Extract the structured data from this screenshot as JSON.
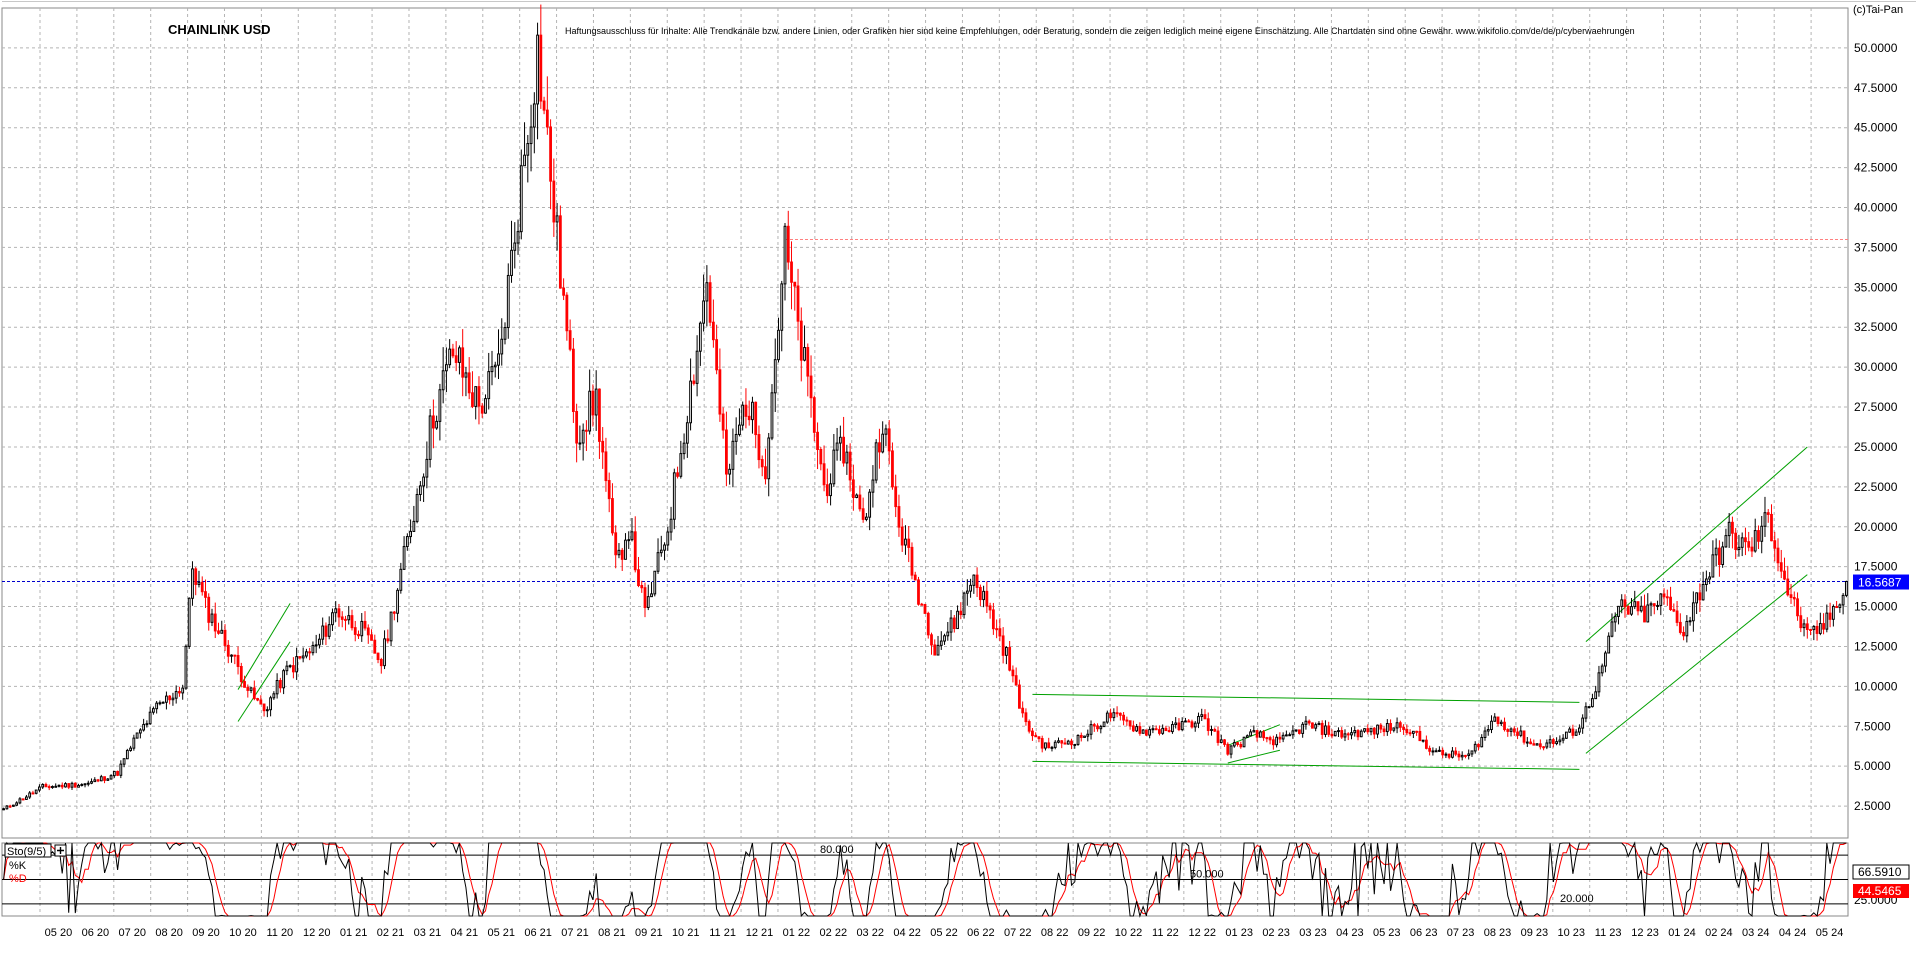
{
  "header": {
    "title": "CHAINLINK USD",
    "disclaimer": "Haftungsausschluss für Inhalte: Alle Trendkanäle bzw. andere Linien, oder Grafiken hier sind keine Empfehlungen, oder Beratung, sondern die zeigen lediglich meine eigene Einschätzung. Alle Chartdaten sind ohne Gewähr.  www.wikifolio.com/de/de/p/cyberwaehrungen",
    "copyright": "(c)Tai-Pan"
  },
  "colors": {
    "up": "#000000",
    "down": "#ff0000",
    "grid": "#b4b4b4",
    "current_line": "#0000cc",
    "current_box": "#0000ff",
    "trend": "#00a000",
    "resistance": "#ff8080",
    "k_line": "#000000",
    "d_line": "#ff0000",
    "d_box": "#ff0000"
  },
  "chart_data": [
    {
      "type": "candlestick",
      "title": "CHAINLINK USD",
      "ylim": [
        0.5,
        52.5
      ],
      "yticks": [
        "2.5000",
        "5.0000",
        "7.5000",
        "10.0000",
        "12.5000",
        "15.0000",
        "17.5000",
        "20.0000",
        "22.5000",
        "25.0000",
        "27.5000",
        "30.0000",
        "32.5000",
        "35.0000",
        "37.5000",
        "40.0000",
        "42.5000",
        "45.0000",
        "47.5000",
        "50.0000"
      ],
      "xticks": [
        "05 20",
        "06 20",
        "07 20",
        "08 20",
        "09 20",
        "10 20",
        "11 20",
        "12 20",
        "01 21",
        "02 21",
        "03 21",
        "04 21",
        "05 21",
        "06 21",
        "07 21",
        "08 21",
        "09 21",
        "10 21",
        "11 21",
        "12 21",
        "01 22",
        "02 22",
        "03 22",
        "04 22",
        "05 22",
        "06 22",
        "07 22",
        "08 22",
        "09 22",
        "10 22",
        "11 22",
        "12 22",
        "01 23",
        "02 23",
        "03 23",
        "04 23",
        "05 23",
        "06 23",
        "07 23",
        "08 23",
        "09 23",
        "10 23",
        "11 23",
        "12 23",
        "01 24",
        "02 24",
        "03 24",
        "04 24",
        "05 24"
      ],
      "current_value": "16.5687",
      "current_level": 16.5687,
      "resistance_level": 38.0,
      "grid": true,
      "anchors": [
        [
          0,
          2.3
        ],
        [
          12,
          3.7
        ],
        [
          26,
          3.9
        ],
        [
          35,
          4.6
        ],
        [
          40,
          6.6
        ],
        [
          47,
          8.7
        ],
        [
          55,
          10.0
        ],
        [
          58,
          17.5
        ],
        [
          62,
          15.0
        ],
        [
          70,
          12.0
        ],
        [
          76,
          9.5
        ],
        [
          80,
          8.5
        ],
        [
          87,
          11.0
        ],
        [
          96,
          12.5
        ],
        [
          102,
          14.8
        ],
        [
          110,
          13.5
        ],
        [
          116,
          11.5
        ],
        [
          124,
          19.0
        ],
        [
          132,
          27.0
        ],
        [
          138,
          31.0
        ],
        [
          146,
          27.5
        ],
        [
          152,
          30.0
        ],
        [
          158,
          40.0
        ],
        [
          164,
          50.0
        ],
        [
          170,
          38.0
        ],
        [
          176,
          26.0
        ],
        [
          182,
          28.0
        ],
        [
          188,
          17.5
        ],
        [
          192,
          20.0
        ],
        [
          197,
          14.5
        ],
        [
          204,
          20.0
        ],
        [
          212,
          30.0
        ],
        [
          216,
          35.5
        ],
        [
          222,
          23.0
        ],
        [
          228,
          28.0
        ],
        [
          234,
          24.0
        ],
        [
          240,
          37.5
        ],
        [
          246,
          30.0
        ],
        [
          252,
          22.5
        ],
        [
          258,
          25.0
        ],
        [
          264,
          20.0
        ],
        [
          270,
          27.0
        ],
        [
          274,
          21.0
        ],
        [
          280,
          16.5
        ],
        [
          286,
          12.5
        ],
        [
          292,
          14.0
        ],
        [
          298,
          17.0
        ],
        [
          302,
          15.0
        ],
        [
          308,
          12.0
        ],
        [
          314,
          7.5
        ],
        [
          320,
          6.2
        ],
        [
          330,
          6.7
        ],
        [
          340,
          8.2
        ],
        [
          350,
          7.2
        ],
        [
          360,
          7.4
        ],
        [
          368,
          8.0
        ],
        [
          376,
          6.0
        ],
        [
          384,
          7.0
        ],
        [
          392,
          6.5
        ],
        [
          400,
          7.6
        ],
        [
          410,
          7.0
        ],
        [
          420,
          7.2
        ],
        [
          430,
          7.6
        ],
        [
          440,
          5.8
        ],
        [
          450,
          5.6
        ],
        [
          458,
          8.0
        ],
        [
          464,
          7.2
        ],
        [
          470,
          6.3
        ],
        [
          478,
          6.6
        ],
        [
          484,
          7.5
        ],
        [
          490,
          10.5
        ],
        [
          496,
          15.0
        ],
        [
          504,
          14.5
        ],
        [
          510,
          15.5
        ],
        [
          516,
          13.5
        ],
        [
          522,
          16.5
        ],
        [
          530,
          19.5
        ],
        [
          536,
          18.5
        ],
        [
          542,
          20.5
        ],
        [
          548,
          16.0
        ],
        [
          554,
          13.0
        ],
        [
          560,
          14.0
        ],
        [
          566,
          16.57
        ]
      ]
    },
    {
      "type": "line",
      "title": "Sto(9/5)",
      "ylim": [
        5,
        95
      ],
      "levels": [
        "80.000",
        "50.000",
        "20.000"
      ],
      "series": [
        {
          "name": "%K",
          "value": "66.5910"
        },
        {
          "name": "%D",
          "value": "44.5465"
        }
      ],
      "yticks": [
        "25.0000"
      ]
    }
  ]
}
